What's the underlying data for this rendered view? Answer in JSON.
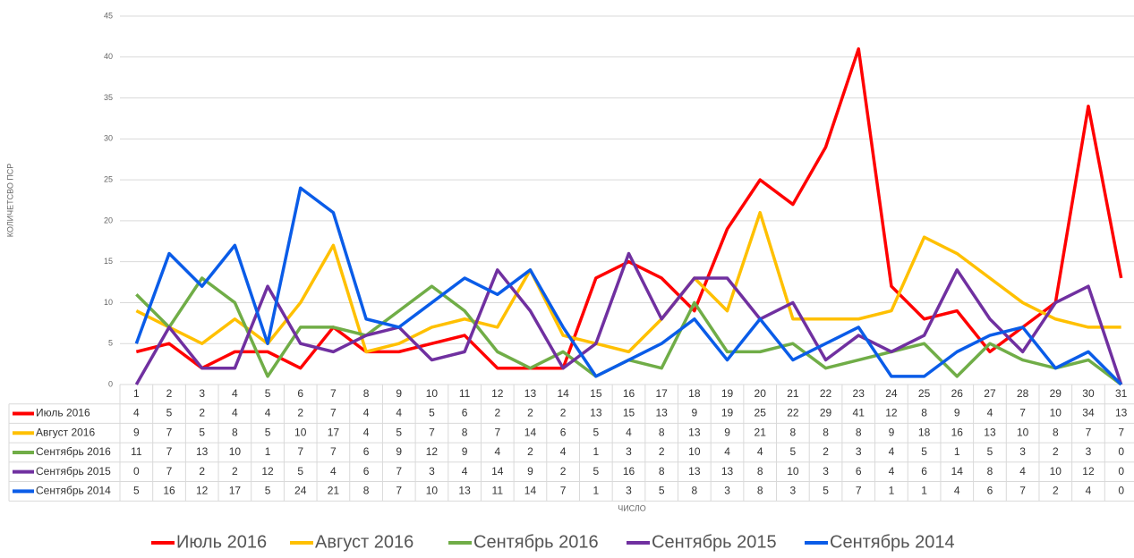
{
  "chart_data": {
    "type": "line",
    "y_label": "КОЛИЧЕТСВО ПСР",
    "x_label": "ЧИСЛО",
    "x": [
      1,
      2,
      3,
      4,
      5,
      6,
      7,
      8,
      9,
      10,
      11,
      12,
      13,
      14,
      15,
      16,
      17,
      18,
      19,
      20,
      21,
      22,
      23,
      24,
      25,
      26,
      27,
      28,
      29,
      30,
      31
    ],
    "series": [
      {
        "name": "Июль 2016",
        "color": "#ff0000",
        "values": [
          4,
          5,
          2,
          4,
          4,
          2,
          7,
          4,
          4,
          5,
          6,
          2,
          2,
          2,
          13,
          15,
          13,
          9,
          19,
          25,
          22,
          29,
          41,
          12,
          8,
          9,
          4,
          7,
          10,
          34,
          13
        ]
      },
      {
        "name": "Август 2016",
        "color": "#ffc000",
        "values": [
          9,
          7,
          5,
          8,
          5,
          10,
          17,
          4,
          5,
          7,
          8,
          7,
          14,
          6,
          5,
          4,
          8,
          13,
          9,
          21,
          8,
          8,
          8,
          9,
          18,
          16,
          13,
          10,
          8,
          7,
          7
        ]
      },
      {
        "name": "Сентябрь 2016",
        "color": "#70ad47",
        "values": [
          11,
          7,
          13,
          10,
          1,
          7,
          7,
          6,
          9,
          12,
          9,
          4,
          2,
          4,
          1,
          3,
          2,
          10,
          4,
          4,
          5,
          2,
          3,
          4,
          5,
          1,
          5,
          3,
          2,
          3,
          0
        ]
      },
      {
        "name": "Сентябрь 2015",
        "color": "#7030a0",
        "values": [
          0,
          7,
          2,
          2,
          12,
          5,
          4,
          6,
          7,
          3,
          4,
          14,
          9,
          2,
          5,
          16,
          8,
          13,
          13,
          8,
          10,
          3,
          6,
          4,
          6,
          14,
          8,
          4,
          10,
          12,
          0
        ]
      },
      {
        "name": "Сентябрь 2014",
        "color": "#0a5ce8",
        "values": [
          5,
          16,
          12,
          17,
          5,
          24,
          21,
          8,
          7,
          10,
          13,
          11,
          14,
          7,
          1,
          3,
          5,
          8,
          3,
          8,
          3,
          5,
          7,
          1,
          1,
          4,
          6,
          7,
          2,
          4,
          0
        ]
      }
    ],
    "ylim": [
      0,
      45
    ],
    "yticks": [
      0,
      5,
      10,
      15,
      20,
      25,
      30,
      35,
      40,
      45
    ],
    "grid": true
  }
}
